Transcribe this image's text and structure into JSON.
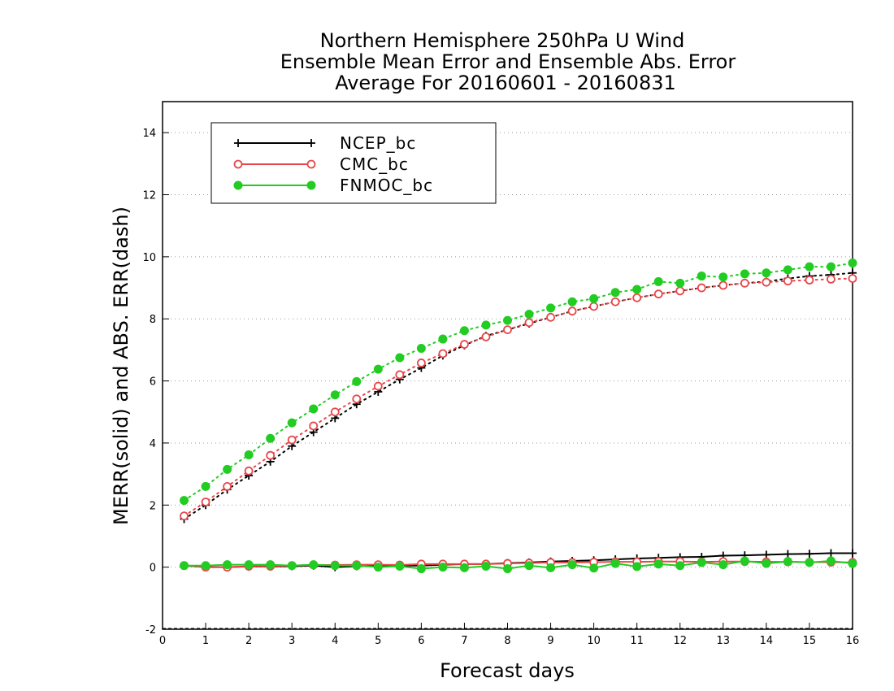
{
  "chart_data": {
    "type": "line",
    "title_lines": [
      "Northern Hemisphere 250hPa U Wind",
      "Ensemble Mean Error and Ensemble Abs. Error",
      "Average For 20160601 - 20160831"
    ],
    "xlabel": "Forecast days",
    "ylabel": "MERR(solid) and ABS. ERR(dash)",
    "xlim": [
      0,
      16
    ],
    "ylim": [
      -2,
      15
    ],
    "xticks": [
      "0",
      "1",
      "2",
      "3",
      "4",
      "5",
      "6",
      "7",
      "8",
      "9",
      "10",
      "11",
      "12",
      "13",
      "14",
      "15",
      "16"
    ],
    "yticks": [
      "-2",
      "0",
      "2",
      "4",
      "6",
      "8",
      "10",
      "12",
      "14"
    ],
    "grid": "dotted horizontal",
    "legend_position": "top-left",
    "x": [
      0.5,
      1,
      1.5,
      2,
      2.5,
      3,
      3.5,
      4,
      4.5,
      5,
      5.5,
      6,
      6.5,
      7,
      7.5,
      8,
      8.5,
      9,
      9.5,
      10,
      10.5,
      11,
      11.5,
      12,
      12.5,
      13,
      13.5,
      14,
      14.5,
      15,
      15.5,
      16
    ],
    "series": [
      {
        "name": "NCEP_bc",
        "color": "#000000",
        "marker": "plus",
        "merr": [
          0.05,
          0.0,
          0.0,
          0.02,
          0.02,
          0.03,
          0.05,
          0.0,
          0.03,
          0.05,
          0.05,
          0.05,
          0.08,
          0.1,
          0.1,
          0.13,
          0.15,
          0.18,
          0.2,
          0.22,
          0.25,
          0.28,
          0.3,
          0.32,
          0.33,
          0.37,
          0.38,
          0.4,
          0.42,
          0.43,
          0.45,
          0.45
        ],
        "abs_err": [
          1.55,
          2.0,
          2.5,
          2.95,
          3.4,
          3.9,
          4.35,
          4.8,
          5.25,
          5.65,
          6.05,
          6.42,
          6.82,
          7.15,
          7.45,
          7.65,
          7.85,
          8.05,
          8.25,
          8.4,
          8.55,
          8.68,
          8.8,
          8.9,
          9.0,
          9.08,
          9.15,
          9.2,
          9.3,
          9.38,
          9.42,
          9.48
        ]
      },
      {
        "name": "CMC_bc",
        "color": "#e8474a",
        "marker": "open-circle",
        "merr": [
          0.05,
          0.0,
          0.0,
          0.03,
          0.03,
          0.05,
          0.07,
          0.07,
          0.08,
          0.08,
          0.07,
          0.1,
          0.1,
          0.1,
          0.1,
          0.12,
          0.13,
          0.15,
          0.15,
          0.16,
          0.17,
          0.17,
          0.18,
          0.18,
          0.17,
          0.18,
          0.18,
          0.17,
          0.17,
          0.16,
          0.16,
          0.15
        ],
        "abs_err": [
          1.65,
          2.1,
          2.6,
          3.1,
          3.6,
          4.1,
          4.55,
          5.0,
          5.42,
          5.83,
          6.2,
          6.58,
          6.88,
          7.18,
          7.42,
          7.65,
          7.88,
          8.05,
          8.25,
          8.4,
          8.55,
          8.68,
          8.8,
          8.9,
          9.0,
          9.08,
          9.15,
          9.18,
          9.22,
          9.25,
          9.28,
          9.3
        ]
      },
      {
        "name": "FNMOC_bc",
        "color": "#22cc22",
        "marker": "filled-circle",
        "merr": [
          0.05,
          0.05,
          0.08,
          0.08,
          0.08,
          0.05,
          0.08,
          0.05,
          0.05,
          0.0,
          0.03,
          -0.05,
          0.0,
          -0.02,
          0.03,
          -0.05,
          0.05,
          -0.02,
          0.08,
          -0.03,
          0.12,
          0.02,
          0.1,
          0.05,
          0.15,
          0.08,
          0.2,
          0.12,
          0.18,
          0.15,
          0.2,
          0.12
        ],
        "abs_err": [
          2.15,
          2.6,
          3.15,
          3.62,
          4.15,
          4.65,
          5.1,
          5.55,
          5.98,
          6.38,
          6.75,
          7.05,
          7.35,
          7.62,
          7.8,
          7.95,
          8.15,
          8.35,
          8.55,
          8.65,
          8.85,
          8.95,
          9.2,
          9.15,
          9.38,
          9.35,
          9.45,
          9.48,
          9.58,
          9.68,
          9.68,
          9.8
        ]
      }
    ]
  }
}
